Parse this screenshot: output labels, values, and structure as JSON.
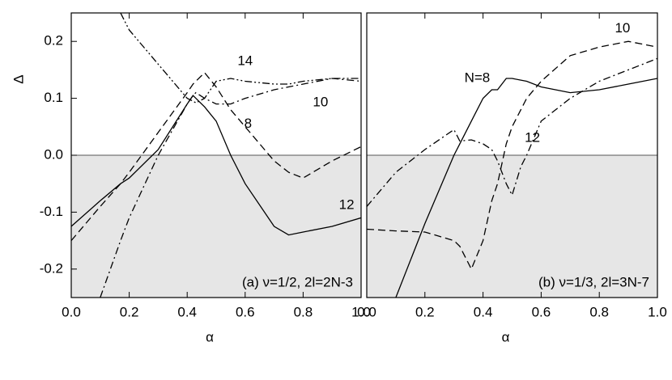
{
  "chart_data": [
    {
      "type": "line",
      "title": "(a) ν=1/2, 2l=2N-3",
      "x_label": "α",
      "y_label": "Δ",
      "x": [
        0,
        0.1,
        0.17,
        0.2,
        0.3,
        0.4,
        0.42,
        0.43,
        0.46,
        0.5,
        0.55,
        0.6,
        0.7,
        0.75,
        0.8,
        0.9,
        1.0
      ],
      "series": [
        {
          "name": "8",
          "color": "#000",
          "style": "dashed",
          "values": [
            -0.15,
            -0.09,
            -0.05,
            -0.03,
            0.04,
            0.11,
            0.125,
            0.13,
            0.145,
            0.12,
            0.08,
            0.05,
            -0.01,
            -0.03,
            -0.04,
            -0.01,
            0.015
          ]
        },
        {
          "name": "10",
          "color": "#000",
          "style": "dashdot",
          "values": [
            null,
            -0.25,
            -0.15,
            -0.11,
            0.0,
            0.09,
            0.105,
            0.11,
            0.1,
            0.09,
            0.09,
            0.1,
            0.115,
            0.12,
            0.125,
            0.135,
            0.13
          ]
        },
        {
          "name": "12",
          "color": "#000",
          "style": "solid",
          "values": [
            -0.125,
            -0.08,
            -0.05,
            -0.04,
            0.01,
            0.09,
            0.105,
            0.1,
            0.085,
            0.06,
            0.0,
            -0.05,
            -0.125,
            -0.14,
            -0.135,
            -0.125,
            -0.11
          ]
        },
        {
          "name": "14",
          "color": "#000",
          "style": "dashdotdot",
          "values": [
            null,
            null,
            0.25,
            0.22,
            0.16,
            0.1,
            0.095,
            0.092,
            0.1,
            0.13,
            0.135,
            0.13,
            0.125,
            0.125,
            0.13,
            0.135,
            0.135
          ]
        }
      ],
      "xlim": [
        0,
        1
      ],
      "ylim": [
        -0.25,
        0.25
      ],
      "xticks": [
        {
          "value": 0,
          "label": "0.0"
        },
        0.2,
        0.4,
        0.6,
        0.8,
        {
          "value": 1,
          "label": "1.0"
        }
      ],
      "yticks": [
        -0.2,
        -0.1,
        {
          "value": 0,
          "label": "0.0"
        },
        0.1,
        0.2
      ]
    },
    {
      "type": "line",
      "title": "(b) ν=1/3, 2l=3N-7",
      "x_label": "α",
      "x": [
        0,
        0.1,
        0.2,
        0.3,
        0.32,
        0.36,
        0.4,
        0.43,
        0.45,
        0.48,
        0.5,
        0.53,
        0.55,
        0.6,
        0.7,
        0.8,
        0.9,
        1.0
      ],
      "series": [
        {
          "name": "N=8",
          "color": "#000",
          "style": "solid",
          "values": [
            null,
            -0.25,
            -0.12,
            0.0,
            0.02,
            0.06,
            0.1,
            0.115,
            0.115,
            0.135,
            0.135,
            0.132,
            0.13,
            0.12,
            0.11,
            0.115,
            0.125,
            0.135
          ]
        },
        {
          "name": "10",
          "color": "#000",
          "style": "dashed",
          "values": [
            -0.13,
            -0.133,
            -0.135,
            -0.15,
            -0.16,
            -0.2,
            -0.15,
            -0.08,
            -0.05,
            0.02,
            0.05,
            0.08,
            0.1,
            0.13,
            0.175,
            0.19,
            0.2,
            0.19
          ]
        },
        {
          "name": "12",
          "color": "#000",
          "style": "dashdot",
          "values": [
            -0.09,
            -0.03,
            0.01,
            0.045,
            0.025,
            0.027,
            0.02,
            0.01,
            -0.01,
            -0.05,
            -0.07,
            -0.02,
            0.0,
            0.06,
            0.1,
            0.13,
            0.15,
            0.17
          ]
        }
      ],
      "xlim": [
        0,
        1
      ],
      "ylim": [
        -0.25,
        0.25
      ],
      "xticks": [
        {
          "value": 0,
          "label": "0.0"
        },
        0.2,
        0.4,
        0.6,
        0.8,
        {
          "value": 1,
          "label": "1.0"
        }
      ]
    }
  ]
}
